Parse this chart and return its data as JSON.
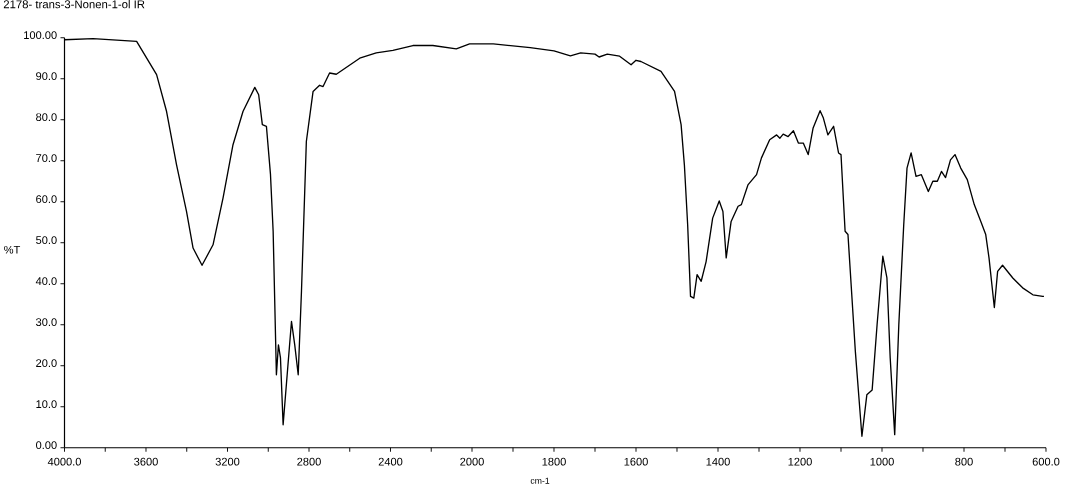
{
  "chart_data": [
    {
      "type": "line",
      "title": "2178- trans-3-Nonen-1-ol IR",
      "ylabel": "%T",
      "color": "#000000",
      "xlim": [
        4000,
        2000
      ],
      "xticks": [
        {
          "value": 4000,
          "label": "4000.0"
        },
        {
          "value": 3800,
          "label": null
        },
        3600,
        {
          "value": 3400,
          "label": null
        },
        3200,
        {
          "value": 3000,
          "label": null
        },
        2800,
        {
          "value": 2600,
          "label": null
        },
        2400,
        {
          "value": 2200,
          "label": null
        },
        2000
      ],
      "ylim": [
        0,
        100
      ],
      "yticks": [
        {
          "value": 0,
          "label": "0.00"
        },
        {
          "value": 10,
          "label": "10.0"
        },
        {
          "value": 20,
          "label": "20.0"
        },
        {
          "value": 30,
          "label": "30.0"
        },
        {
          "value": 40,
          "label": "40.0"
        },
        {
          "value": 50,
          "label": "50.0"
        },
        {
          "value": 60,
          "label": "60.0"
        },
        {
          "value": 70,
          "label": "70.0"
        },
        {
          "value": 80,
          "label": "80.0"
        },
        {
          "value": 90,
          "label": "90.0"
        },
        {
          "value": 100,
          "label": "100.00"
        }
      ],
      "x": [
        4000,
        3860,
        3646,
        3548,
        3499,
        3450,
        3401,
        3369,
        3325,
        3271,
        3222,
        3173,
        3124,
        3066,
        3047,
        3029,
        3009,
        2989,
        2976,
        2960,
        2950,
        2940,
        2927,
        2886,
        2870,
        2853,
        2837,
        2813,
        2780,
        2748,
        2731,
        2699,
        2666,
        2551,
        2470,
        2388,
        2290,
        2192,
        2077,
        2012,
        2000
      ],
      "values": [
        99.5,
        99.8,
        99.1,
        91.0,
        82.0,
        69.0,
        57.6,
        48.7,
        44.5,
        49.5,
        60.9,
        73.9,
        82.0,
        87.9,
        86.1,
        78.8,
        78.4,
        66.6,
        52.8,
        17.8,
        25.1,
        21.9,
        5.6,
        30.8,
        25.1,
        17.8,
        38.1,
        74.7,
        86.9,
        88.4,
        88.1,
        91.4,
        91.1,
        95.0,
        96.3,
        96.9,
        98.1,
        98.1,
        97.3,
        98.5,
        98.5
      ]
    },
    {
      "type": "line",
      "xlabel": "cm-1",
      "color": "#000000",
      "tick_labels": "x",
      "xlim": [
        2000,
        600
      ],
      "xticks": [
        {
          "value": 1900,
          "label": null
        },
        1800,
        {
          "value": 1700,
          "label": null
        },
        1600,
        {
          "value": 1500,
          "label": null
        },
        1400,
        {
          "value": 1300,
          "label": null
        },
        1200,
        {
          "value": 1100,
          "label": null
        },
        1000,
        {
          "value": 900,
          "label": null
        },
        800,
        {
          "value": 700,
          "label": null
        },
        {
          "value": 600,
          "label": "600.0"
        }
      ],
      "ylim": [
        0,
        100
      ],
      "x": [
        2000,
        1948,
        1858,
        1800,
        1760,
        1735,
        1700,
        1690,
        1670,
        1640,
        1612,
        1600,
        1588,
        1539,
        1506,
        1490,
        1482,
        1474,
        1467,
        1459,
        1451,
        1441,
        1429,
        1413,
        1397,
        1388,
        1380,
        1368,
        1351,
        1343,
        1327,
        1306,
        1294,
        1274,
        1257,
        1249,
        1241,
        1229,
        1216,
        1204,
        1192,
        1180,
        1168,
        1151,
        1143,
        1132,
        1118,
        1106,
        1100,
        1090,
        1083,
        1065,
        1049,
        1037,
        1024,
        1012,
        998,
        988,
        980,
        969,
        959,
        947,
        939,
        929,
        917,
        904,
        887,
        876,
        865,
        855,
        845,
        833,
        822,
        808,
        792,
        775,
        759,
        747,
        739,
        726,
        718,
        706,
        681,
        657,
        632,
        608,
        605
      ],
      "values": [
        98.5,
        98.5,
        97.6,
        96.8,
        95.6,
        96.3,
        96.0,
        95.3,
        96.0,
        95.5,
        93.4,
        94.5,
        94.2,
        91.8,
        86.9,
        78.8,
        69.0,
        54.4,
        36.9,
        36.5,
        42.2,
        40.6,
        45.4,
        56.0,
        60.2,
        57.6,
        46.3,
        55.2,
        58.9,
        59.3,
        64.1,
        66.6,
        70.7,
        75.1,
        76.3,
        75.5,
        76.5,
        75.9,
        77.3,
        74.3,
        74.3,
        71.5,
        78.0,
        82.2,
        80.4,
        76.3,
        78.4,
        71.9,
        71.5,
        52.8,
        52.0,
        23.5,
        2.8,
        12.9,
        14.1,
        30.0,
        46.7,
        41.4,
        21.9,
        3.2,
        30.0,
        54.4,
        68.2,
        71.9,
        66.2,
        66.6,
        62.5,
        65.0,
        65.0,
        67.4,
        65.9,
        70.2,
        71.5,
        68.2,
        65.4,
        59.3,
        55.2,
        52.0,
        46.3,
        34.2,
        43.0,
        44.5,
        41.4,
        39.0,
        37.3,
        36.9,
        36.9
      ]
    }
  ]
}
